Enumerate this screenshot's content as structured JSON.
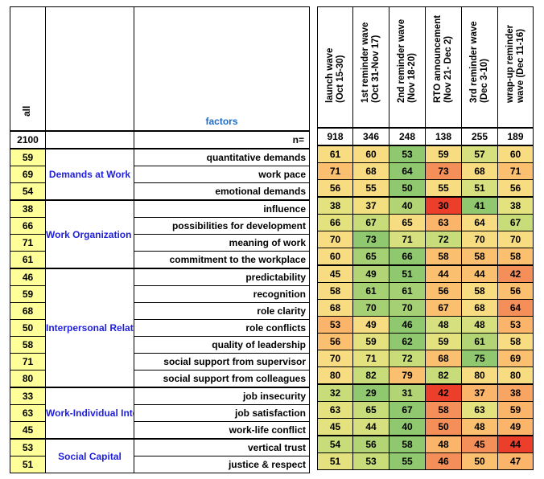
{
  "left": {
    "all_header": "all",
    "factors_header": "factors",
    "n_label": "n=",
    "n_total": "2100"
  },
  "waves": [
    {
      "label": "launch wave\n(Oct 15-30)",
      "n": "918"
    },
    {
      "label": "1st reminder wave\n(Oct 31-Nov 17)",
      "n": "346"
    },
    {
      "label": "2nd reminder wave\n(Nov 18-20)",
      "n": "248"
    },
    {
      "label": "RTO announcement\n(Nov 21- Dec 2)",
      "n": "138"
    },
    {
      "label": "3rd reminder wave\n(Dec 3-10)",
      "n": "255"
    },
    {
      "label": "wrap-up reminder\nwave (Dec 11-16)",
      "n": "189"
    }
  ],
  "groups": [
    {
      "name": "Demands at Work",
      "rows": [
        {
          "factor": "quantitative demands",
          "all": "59",
          "values": [
            "61",
            "60",
            "53",
            "59",
            "57",
            "60"
          ],
          "colors": [
            "#f8dc82",
            "#f8dc82",
            "#8fc86f",
            "#f8dc82",
            "#d7e07e",
            "#f8dc82"
          ]
        },
        {
          "factor": "work pace",
          "all": "69",
          "values": [
            "71",
            "68",
            "64",
            "73",
            "68",
            "71"
          ],
          "colors": [
            "#fbc06f",
            "#f8dc82",
            "#8fc86f",
            "#f58f5a",
            "#f8dc82",
            "#fbc06f"
          ]
        },
        {
          "factor": "emotional demands",
          "all": "54",
          "values": [
            "56",
            "55",
            "50",
            "55",
            "51",
            "56"
          ],
          "colors": [
            "#f8dc82",
            "#f8dc82",
            "#8fc86f",
            "#f8dc82",
            "#d7e07e",
            "#f8dc82"
          ]
        }
      ]
    },
    {
      "name": "Work Organization and Job Content",
      "rows": [
        {
          "factor": "influence",
          "all": "38",
          "values": [
            "38",
            "37",
            "40",
            "30",
            "41",
            "38"
          ],
          "colors": [
            "#e4e17f",
            "#f1df80",
            "#b2d475",
            "#ec3f2b",
            "#8fc86f",
            "#e4e17f"
          ]
        },
        {
          "factor": "possibilities for development",
          "all": "66",
          "values": [
            "66",
            "67",
            "65",
            "63",
            "64",
            "67"
          ],
          "colors": [
            "#e4e17f",
            "#c9dc7a",
            "#f8dc82",
            "#fbb56a",
            "#f8dc82",
            "#c9dc7a"
          ]
        },
        {
          "factor": "meaning of work",
          "all": "71",
          "values": [
            "70",
            "73",
            "71",
            "72",
            "70",
            "70"
          ],
          "colors": [
            "#f8dc82",
            "#8fc86f",
            "#d7e07e",
            "#c9dc7a",
            "#f8dc82",
            "#f8dc82"
          ]
        },
        {
          "factor": "commitment to the workplace",
          "all": "61",
          "values": [
            "60",
            "65",
            "66",
            "58",
            "58",
            "58"
          ],
          "colors": [
            "#f8dc82",
            "#a5d073",
            "#8fc86f",
            "#fbc06f",
            "#fbc06f",
            "#fbc06f"
          ]
        }
      ]
    },
    {
      "name": "Interpersonal Relations and Leadership",
      "rows": [
        {
          "factor": "predictability",
          "all": "46",
          "values": [
            "45",
            "49",
            "51",
            "44",
            "44",
            "42"
          ],
          "colors": [
            "#f8dc82",
            "#b2d475",
            "#8fc86f",
            "#fbc06f",
            "#fbc06f",
            "#f58f5a"
          ]
        },
        {
          "factor": "recognition",
          "all": "59",
          "values": [
            "58",
            "61",
            "61",
            "56",
            "58",
            "56"
          ],
          "colors": [
            "#f8dc82",
            "#a5d073",
            "#a5d073",
            "#fbc06f",
            "#f8dc82",
            "#fbc06f"
          ]
        },
        {
          "factor": "role clarity",
          "all": "68",
          "values": [
            "68",
            "70",
            "70",
            "67",
            "68",
            "64"
          ],
          "colors": [
            "#f8dc82",
            "#a5d073",
            "#a5d073",
            "#fbc06f",
            "#f8dc82",
            "#f58f5a"
          ]
        },
        {
          "factor": "role conflicts",
          "all": "50",
          "values": [
            "53",
            "49",
            "46",
            "48",
            "48",
            "53"
          ],
          "colors": [
            "#fbb56a",
            "#f8dc82",
            "#8fc86f",
            "#d7e07e",
            "#d7e07e",
            "#fbb56a"
          ]
        },
        {
          "factor": "quality of leadership",
          "all": "58",
          "values": [
            "56",
            "59",
            "62",
            "59",
            "61",
            "58"
          ],
          "colors": [
            "#fbc06f",
            "#e4e17f",
            "#8fc86f",
            "#e4e17f",
            "#b2d475",
            "#f8dc82"
          ]
        },
        {
          "factor": "social support from supervisor",
          "all": "71",
          "values": [
            "70",
            "71",
            "72",
            "68",
            "75",
            "69"
          ],
          "colors": [
            "#f8dc82",
            "#e4e17f",
            "#c9dc7a",
            "#fbc06f",
            "#8fc86f",
            "#fbc06f"
          ]
        },
        {
          "factor": "social support from colleagues",
          "all": "80",
          "values": [
            "80",
            "82",
            "79",
            "82",
            "80",
            "80"
          ],
          "colors": [
            "#f8dc82",
            "#c9dc7a",
            "#fbc06f",
            "#c9dc7a",
            "#f8dc82",
            "#f8dc82"
          ]
        }
      ]
    },
    {
      "name": "Work-Individual Interface",
      "rows": [
        {
          "factor": "job insecurity",
          "all": "33",
          "values": [
            "32",
            "29",
            "31",
            "42",
            "37",
            "38"
          ],
          "colors": [
            "#c9dc7a",
            "#8fc86f",
            "#b2d475",
            "#ec3f2b",
            "#fbb56a",
            "#f8a563"
          ]
        },
        {
          "factor": "job satisfaction",
          "all": "63",
          "values": [
            "63",
            "65",
            "67",
            "58",
            "63",
            "59"
          ],
          "colors": [
            "#e4e17f",
            "#c9dc7a",
            "#8fc86f",
            "#f58f5a",
            "#e4e17f",
            "#fbb56a"
          ]
        },
        {
          "factor": "work-life conflict",
          "all": "45",
          "values": [
            "45",
            "44",
            "40",
            "50",
            "48",
            "49"
          ],
          "colors": [
            "#e4e17f",
            "#d7e07e",
            "#8fc86f",
            "#f58f5a",
            "#fbc06f",
            "#fbb56a"
          ]
        }
      ]
    },
    {
      "name": "Social Capital",
      "rows": [
        {
          "factor": "vertical trust",
          "all": "53",
          "values": [
            "54",
            "56",
            "58",
            "48",
            "45",
            "44"
          ],
          "colors": [
            "#c9dc7a",
            "#b2d475",
            "#8fc86f",
            "#fbb56a",
            "#f58f5a",
            "#ec3f2b"
          ]
        },
        {
          "factor": "justice & respect",
          "all": "51",
          "values": [
            "51",
            "53",
            "55",
            "46",
            "50",
            "47"
          ],
          "colors": [
            "#e4e17f",
            "#c9dc7a",
            "#8fc86f",
            "#f58f5a",
            "#fbc06f",
            "#fbb56a"
          ]
        }
      ]
    }
  ]
}
